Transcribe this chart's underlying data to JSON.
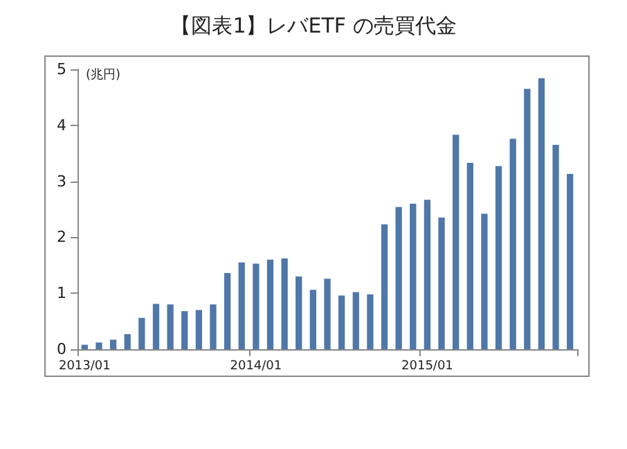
{
  "chart_data": {
    "type": "bar",
    "title": "【図表1】レバETF の売買代金",
    "ylabel": "(兆円)",
    "categories": [
      "2013/01",
      null,
      null,
      null,
      null,
      null,
      null,
      null,
      null,
      null,
      null,
      null,
      "2014/01",
      null,
      null,
      null,
      null,
      null,
      null,
      null,
      null,
      null,
      null,
      null,
      "2015/01",
      null,
      null,
      null,
      null,
      null,
      null,
      null,
      null,
      null,
      null
    ],
    "values": [
      0.08,
      0.12,
      0.17,
      0.27,
      0.56,
      0.81,
      0.8,
      0.68,
      0.7,
      0.8,
      1.36,
      1.55,
      1.53,
      1.6,
      1.62,
      1.3,
      1.06,
      1.26,
      0.96,
      1.02,
      0.98,
      2.23,
      2.54,
      2.6,
      2.67,
      2.35,
      3.83,
      3.33,
      2.42,
      3.27,
      3.76,
      4.65,
      4.84,
      3.65,
      3.13
    ],
    "color": "#4f77a8",
    "ylim": [
      0,
      5
    ],
    "yticks": [
      0,
      1,
      2,
      3,
      4,
      5
    ]
  }
}
